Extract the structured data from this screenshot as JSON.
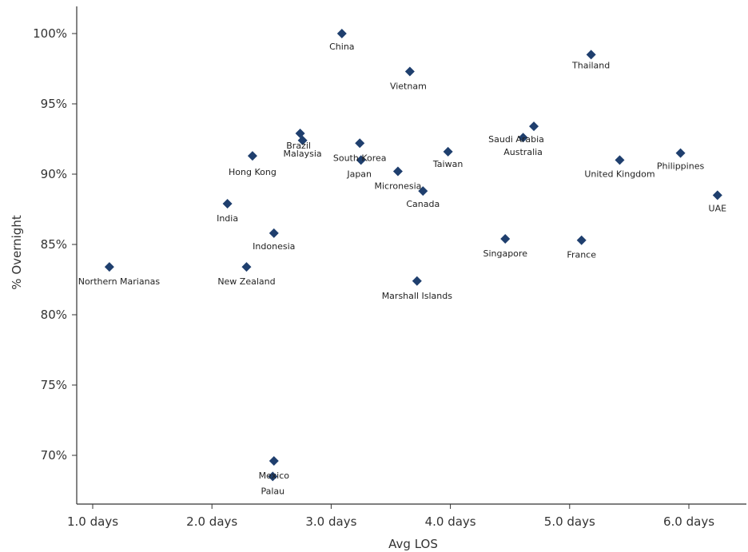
{
  "chart_data": {
    "type": "scatter",
    "xlabel": "Avg LOS",
    "ylabel": "% Overnight",
    "xlim": [
      0.85,
      6.5
    ],
    "ylim": [
      66.5,
      102
    ],
    "x_ticks": [
      1,
      2,
      3,
      4,
      5,
      6
    ],
    "x_tick_labels": [
      "1.0 days",
      "2.0 days",
      "3.0 days",
      "4.0 days",
      "5.0 days",
      "6.0 days"
    ],
    "y_ticks": [
      70,
      75,
      80,
      85,
      90,
      95,
      100
    ],
    "y_tick_labels": [
      "70%",
      "75%",
      "80%",
      "85%",
      "90%",
      "95%",
      "100%"
    ],
    "grid": false,
    "marker": "diamond",
    "marker_color": "#1f3f6e",
    "points": [
      {
        "label": "China",
        "x": 3.09,
        "y": 100.0
      },
      {
        "label": "Thailand",
        "x": 5.18,
        "y": 98.5
      },
      {
        "label": "Vietnam",
        "x": 3.66,
        "y": 97.3
      },
      {
        "label": "Saudi Arabia",
        "x": 4.7,
        "y": 93.4
      },
      {
        "label": "Australia",
        "x": 4.61,
        "y": 92.6
      },
      {
        "label": "Brazil",
        "x": 2.74,
        "y": 92.9
      },
      {
        "label": "Malaysia",
        "x": 2.76,
        "y": 92.4
      },
      {
        "label": "South Korea",
        "x": 3.24,
        "y": 92.2
      },
      {
        "label": "Taiwan",
        "x": 3.98,
        "y": 91.6
      },
      {
        "label": "Philippines",
        "x": 5.93,
        "y": 91.5
      },
      {
        "label": "Hong Kong",
        "x": 2.34,
        "y": 91.3
      },
      {
        "label": "Japan",
        "x": 3.25,
        "y": 91.0
      },
      {
        "label": "United Kingdom",
        "x": 5.42,
        "y": 91.0
      },
      {
        "label": "Micronesia",
        "x": 3.56,
        "y": 90.2
      },
      {
        "label": "Canada",
        "x": 3.77,
        "y": 88.8
      },
      {
        "label": "UAE",
        "x": 6.24,
        "y": 88.5
      },
      {
        "label": "India",
        "x": 2.13,
        "y": 87.9
      },
      {
        "label": "Indonesia",
        "x": 2.52,
        "y": 85.8
      },
      {
        "label": "Singapore",
        "x": 4.46,
        "y": 85.4
      },
      {
        "label": "France",
        "x": 5.1,
        "y": 85.3
      },
      {
        "label": "Northern Marianas",
        "x": 1.14,
        "y": 83.4
      },
      {
        "label": "New Zealand",
        "x": 2.29,
        "y": 83.4
      },
      {
        "label": "Marshall Islands",
        "x": 3.72,
        "y": 82.4
      },
      {
        "label": "Mexico",
        "x": 2.52,
        "y": 69.6
      },
      {
        "label": "Palau",
        "x": 2.51,
        "y": 68.5
      }
    ]
  }
}
